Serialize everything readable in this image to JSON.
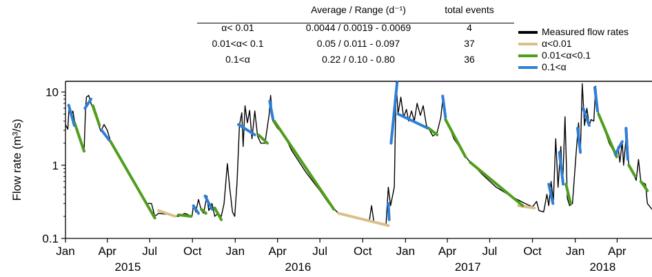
{
  "table": {
    "headers": [
      "",
      "Average / Range (d⁻¹)",
      "total events"
    ],
    "rows": [
      {
        "label": "α< 0.01",
        "avg_range": "0.0044 / 0.0019 - 0.0069",
        "events": "4"
      },
      {
        "label": "0.01<α< 0.1",
        "avg_range": "0.05 / 0.011 - 0.097",
        "events": "37"
      },
      {
        "label": "0.1<α",
        "avg_range": "0.22 / 0.10 - 0.80",
        "events": "36"
      }
    ]
  },
  "legend": [
    {
      "label": "Measured flow rates",
      "color": "#000000"
    },
    {
      "label": "α<0.01",
      "color": "#d9c08a"
    },
    {
      "label": "0.01<α<0.1",
      "color": "#4f9e1c"
    },
    {
      "label": "0.1<α",
      "color": "#2e7fd6"
    }
  ],
  "chart_data": {
    "type": "line",
    "y_scale": "log",
    "ylabel": "Flow rate (m³/s)",
    "ylim": [
      0.1,
      14
    ],
    "yticks": [
      0.1,
      1,
      10
    ],
    "ytick_labels": [
      "0.1",
      "1",
      "10"
    ],
    "xlim": [
      "2015-01-01",
      "2018-06-15"
    ],
    "xticks": [
      {
        "date": "2015-01-01",
        "label": "Jan"
      },
      {
        "date": "2015-04-01",
        "label": "Apr"
      },
      {
        "date": "2015-07-01",
        "label": "Jul"
      },
      {
        "date": "2015-10-01",
        "label": "Oct"
      },
      {
        "date": "2016-01-01",
        "label": "Jan"
      },
      {
        "date": "2016-04-01",
        "label": "Apr"
      },
      {
        "date": "2016-07-01",
        "label": "Jul"
      },
      {
        "date": "2016-10-01",
        "label": "Oct"
      },
      {
        "date": "2017-01-01",
        "label": "Jan"
      },
      {
        "date": "2017-04-01",
        "label": "Apr"
      },
      {
        "date": "2017-07-01",
        "label": "Jul"
      },
      {
        "date": "2017-10-01",
        "label": "Oct"
      },
      {
        "date": "2018-01-01",
        "label": "Jan"
      },
      {
        "date": "2018-04-01",
        "label": "Apr"
      }
    ],
    "year_labels": [
      {
        "date": "2015-05-15",
        "label": "2015"
      },
      {
        "date": "2016-05-15",
        "label": "2016"
      },
      {
        "date": "2017-05-15",
        "label": "2017"
      },
      {
        "date": "2018-03-01",
        "label": "2018"
      }
    ],
    "threshold_line": 14,
    "series": [
      {
        "name": "Measured flow rates",
        "color": "#000000",
        "points": [
          [
            "2015-01-01",
            3.6
          ],
          [
            "2015-01-06",
            3.1
          ],
          [
            "2015-01-09",
            6.5
          ],
          [
            "2015-01-13",
            4.8
          ],
          [
            "2015-01-17",
            5.5
          ],
          [
            "2015-01-21",
            3.8
          ],
          [
            "2015-01-25",
            3.2
          ],
          [
            "2015-02-01",
            2.2
          ],
          [
            "2015-02-06",
            1.8
          ],
          [
            "2015-02-10",
            1.55
          ],
          [
            "2015-02-13",
            5.5
          ],
          [
            "2015-02-15",
            8.5
          ],
          [
            "2015-02-20",
            9.0
          ],
          [
            "2015-02-25",
            7.0
          ],
          [
            "2015-03-05",
            5.0
          ],
          [
            "2015-03-12",
            3.8
          ],
          [
            "2015-03-18",
            2.9
          ],
          [
            "2015-03-25",
            3.6
          ],
          [
            "2015-04-01",
            3.0
          ],
          [
            "2015-04-08",
            2.1
          ],
          [
            "2015-05-01",
            1.2
          ],
          [
            "2015-06-01",
            0.55
          ],
          [
            "2015-06-25",
            0.3
          ],
          [
            "2015-07-05",
            0.3
          ],
          [
            "2015-07-12",
            0.2
          ],
          [
            "2015-07-20",
            0.22
          ],
          [
            "2015-08-15",
            0.21
          ],
          [
            "2015-09-01",
            0.2
          ],
          [
            "2015-09-15",
            0.22
          ],
          [
            "2015-09-30",
            0.2
          ],
          [
            "2015-10-03",
            0.28
          ],
          [
            "2015-10-08",
            0.23
          ],
          [
            "2015-10-14",
            0.34
          ],
          [
            "2015-10-20",
            0.24
          ],
          [
            "2015-10-25",
            0.22
          ],
          [
            "2015-11-01",
            0.38
          ],
          [
            "2015-11-05",
            0.24
          ],
          [
            "2015-11-12",
            0.3
          ],
          [
            "2015-11-18",
            0.2
          ],
          [
            "2015-11-25",
            0.22
          ],
          [
            "2015-12-02",
            0.2
          ],
          [
            "2015-12-08",
            0.3
          ],
          [
            "2015-12-15",
            1.05
          ],
          [
            "2015-12-20",
            0.5
          ],
          [
            "2015-12-26",
            0.23
          ],
          [
            "2015-12-31",
            0.2
          ],
          [
            "2016-01-05",
            0.6
          ],
          [
            "2016-01-10",
            3.5
          ],
          [
            "2016-01-15",
            5.2
          ],
          [
            "2016-01-18",
            1.8
          ],
          [
            "2016-01-22",
            6.5
          ],
          [
            "2016-01-27",
            3.8
          ],
          [
            "2016-02-01",
            5.6
          ],
          [
            "2016-02-06",
            2.3
          ],
          [
            "2016-02-12",
            5.5
          ],
          [
            "2016-02-18",
            2.5
          ],
          [
            "2016-02-25",
            2.0
          ],
          [
            "2016-03-05",
            2.0
          ],
          [
            "2016-03-14",
            5.0
          ],
          [
            "2016-03-17",
            9.0
          ],
          [
            "2016-03-22",
            4.0
          ],
          [
            "2016-04-01",
            3.2
          ],
          [
            "2016-04-15",
            2.6
          ],
          [
            "2016-05-01",
            1.6
          ],
          [
            "2016-06-01",
            0.8
          ],
          [
            "2016-07-01",
            0.45
          ],
          [
            "2016-07-20",
            0.3
          ],
          [
            "2016-08-10",
            0.22
          ],
          [
            "2016-09-01",
            0.2
          ],
          [
            "2016-10-01",
            0.18
          ],
          [
            "2016-10-15",
            0.17
          ],
          [
            "2016-10-20",
            0.28
          ],
          [
            "2016-10-25",
            0.17
          ],
          [
            "2016-11-10",
            0.16
          ],
          [
            "2016-11-20",
            0.15
          ],
          [
            "2016-11-25",
            0.5
          ],
          [
            "2016-11-30",
            0.28
          ],
          [
            "2016-12-08",
            0.5
          ],
          [
            "2016-12-12",
            14.0
          ],
          [
            "2016-12-16",
            5.0
          ],
          [
            "2016-12-22",
            8.5
          ],
          [
            "2016-12-28",
            4.5
          ],
          [
            "2017-01-03",
            5.8
          ],
          [
            "2017-01-08",
            4.0
          ],
          [
            "2017-01-14",
            5.5
          ],
          [
            "2017-01-20",
            4.0
          ],
          [
            "2017-01-26",
            7.0
          ],
          [
            "2017-02-02",
            4.8
          ],
          [
            "2017-02-08",
            6.5
          ],
          [
            "2017-02-15",
            3.5
          ],
          [
            "2017-02-22",
            3.0
          ],
          [
            "2017-03-01",
            2.5
          ],
          [
            "2017-03-10",
            2.8
          ],
          [
            "2017-03-18",
            4.5
          ],
          [
            "2017-03-23",
            9.0
          ],
          [
            "2017-03-28",
            4.5
          ],
          [
            "2017-04-15",
            2.3
          ],
          [
            "2017-05-15",
            1.2
          ],
          [
            "2017-06-15",
            0.75
          ],
          [
            "2017-07-15",
            0.5
          ],
          [
            "2017-08-15",
            0.38
          ],
          [
            "2017-09-15",
            0.3
          ],
          [
            "2017-10-01",
            0.27
          ],
          [
            "2017-10-10",
            0.32
          ],
          [
            "2017-10-15",
            0.24
          ],
          [
            "2017-10-25",
            0.23
          ],
          [
            "2017-11-01",
            0.4
          ],
          [
            "2017-11-05",
            0.28
          ],
          [
            "2017-11-10",
            0.6
          ],
          [
            "2017-11-15",
            0.32
          ],
          [
            "2017-11-20",
            2.3
          ],
          [
            "2017-11-25",
            0.5
          ],
          [
            "2017-12-01",
            1.8
          ],
          [
            "2017-12-05",
            0.55
          ],
          [
            "2017-12-10",
            4.6
          ],
          [
            "2017-12-15",
            0.35
          ],
          [
            "2017-12-20",
            0.28
          ],
          [
            "2017-12-26",
            0.3
          ],
          [
            "2018-01-03",
            1.5
          ],
          [
            "2018-01-08",
            3.8
          ],
          [
            "2018-01-12",
            1.5
          ],
          [
            "2018-01-16",
            13.0
          ],
          [
            "2018-01-21",
            3.5
          ],
          [
            "2018-01-26",
            6.0
          ],
          [
            "2018-01-31",
            3.5
          ],
          [
            "2018-02-04",
            4.2
          ],
          [
            "2018-02-10",
            4.0
          ],
          [
            "2018-02-14",
            12.0
          ],
          [
            "2018-02-20",
            5.0
          ],
          [
            "2018-03-01",
            3.6
          ],
          [
            "2018-03-15",
            2.0
          ],
          [
            "2018-03-31",
            1.3
          ],
          [
            "2018-04-03",
            1.8
          ],
          [
            "2018-04-07",
            1.1
          ],
          [
            "2018-04-12",
            2.1
          ],
          [
            "2018-04-15",
            1.0
          ],
          [
            "2018-04-22",
            3.2
          ],
          [
            "2018-04-26",
            1.0
          ],
          [
            "2018-05-05",
            0.8
          ],
          [
            "2018-05-12",
            0.62
          ],
          [
            "2018-05-17",
            1.2
          ],
          [
            "2018-05-22",
            0.6
          ],
          [
            "2018-06-01",
            0.55
          ],
          [
            "2018-06-05",
            0.3
          ],
          [
            "2018-06-15",
            0.25
          ]
        ]
      },
      {
        "name": "α<0.01",
        "color": "#d9c08a",
        "segments": [
          [
            [
              "2015-07-20",
              0.24
            ],
            [
              "2015-08-25",
              0.2
            ]
          ],
          [
            [
              "2016-08-10",
              0.22
            ],
            [
              "2016-11-25",
              0.15
            ]
          ],
          [
            [
              "2017-09-01",
              0.28
            ],
            [
              "2017-10-05",
              0.26
            ]
          ]
        ]
      },
      {
        "name": "0.01<α<0.1",
        "color": "#4f9e1c",
        "segments": [
          [
            [
              "2015-01-20",
              3.9
            ],
            [
              "2015-02-10",
              1.55
            ]
          ],
          [
            [
              "2015-03-01",
              6.5
            ],
            [
              "2015-03-15",
              3.5
            ]
          ],
          [
            [
              "2015-04-08",
              2.1
            ],
            [
              "2015-07-12",
              0.19
            ]
          ],
          [
            [
              "2015-09-01",
              0.21
            ],
            [
              "2015-09-28",
              0.2
            ]
          ],
          [
            [
              "2015-10-20",
              0.25
            ],
            [
              "2015-10-30",
              0.22
            ]
          ],
          [
            [
              "2015-11-18",
              0.26
            ],
            [
              "2015-12-02",
              0.18
            ]
          ],
          [
            [
              "2016-02-20",
              2.6
            ],
            [
              "2016-03-10",
              2.0
            ]
          ],
          [
            [
              "2016-03-25",
              4.0
            ],
            [
              "2016-07-31",
              0.25
            ]
          ],
          [
            [
              "2017-02-20",
              3.2
            ],
            [
              "2017-03-10",
              2.6
            ]
          ],
          [
            [
              "2017-03-28",
              4.2
            ],
            [
              "2017-05-10",
              1.3
            ]
          ],
          [
            [
              "2017-05-20",
              1.1
            ],
            [
              "2017-09-10",
              0.28
            ]
          ],
          [
            [
              "2017-12-12",
              0.55
            ],
            [
              "2017-12-22",
              0.3
            ]
          ],
          [
            [
              "2018-02-20",
              5.0
            ],
            [
              "2018-03-31",
              1.3
            ]
          ],
          [
            [
              "2018-04-26",
              1.0
            ],
            [
              "2018-05-10",
              0.7
            ]
          ],
          [
            [
              "2018-05-22",
              0.6
            ],
            [
              "2018-06-05",
              0.45
            ]
          ]
        ]
      },
      {
        "name": "0.1<α",
        "color": "#2e7fd6",
        "segments": [
          [
            [
              "2015-01-08",
              6.6
            ],
            [
              "2015-01-20",
              3.5
            ]
          ],
          [
            [
              "2015-02-12",
              6.0
            ],
            [
              "2015-02-25",
              8.0
            ]
          ],
          [
            [
              "2015-03-20",
              3.0
            ],
            [
              "2015-04-05",
              2.2
            ]
          ],
          [
            [
              "2015-10-03",
              0.28
            ],
            [
              "2015-10-14",
              0.22
            ]
          ],
          [
            [
              "2015-10-28",
              0.38
            ],
            [
              "2015-11-12",
              0.25
            ]
          ],
          [
            [
              "2016-01-08",
              3.6
            ],
            [
              "2016-02-12",
              2.6
            ]
          ],
          [
            [
              "2016-03-15",
              7.5
            ],
            [
              "2016-03-22",
              4.3
            ]
          ],
          [
            [
              "2016-11-25",
              0.3
            ],
            [
              "2016-11-27",
              0.18
            ]
          ],
          [
            [
              "2016-12-01",
              2.0
            ],
            [
              "2016-12-14",
              13.5
            ]
          ],
          [
            [
              "2016-12-16",
              5.0
            ],
            [
              "2017-02-18",
              3.2
            ]
          ],
          [
            [
              "2017-03-22",
              8.8
            ],
            [
              "2017-03-28",
              4.5
            ]
          ],
          [
            [
              "2017-11-05",
              0.55
            ],
            [
              "2017-11-14",
              0.3
            ]
          ],
          [
            [
              "2017-11-28",
              1.5
            ],
            [
              "2017-12-06",
              0.55
            ]
          ],
          [
            [
              "2018-01-06",
              3.2
            ],
            [
              "2018-01-12",
              1.5
            ]
          ],
          [
            [
              "2018-01-18",
              6.0
            ],
            [
              "2018-01-31",
              3.5
            ]
          ],
          [
            [
              "2018-02-12",
              11.5
            ],
            [
              "2018-02-18",
              5.5
            ]
          ],
          [
            [
              "2018-03-28",
              1.4
            ],
            [
              "2018-04-12",
              2.1
            ]
          ],
          [
            [
              "2018-04-20",
              3.2
            ],
            [
              "2018-04-24",
              1.2
            ]
          ]
        ]
      }
    ]
  }
}
